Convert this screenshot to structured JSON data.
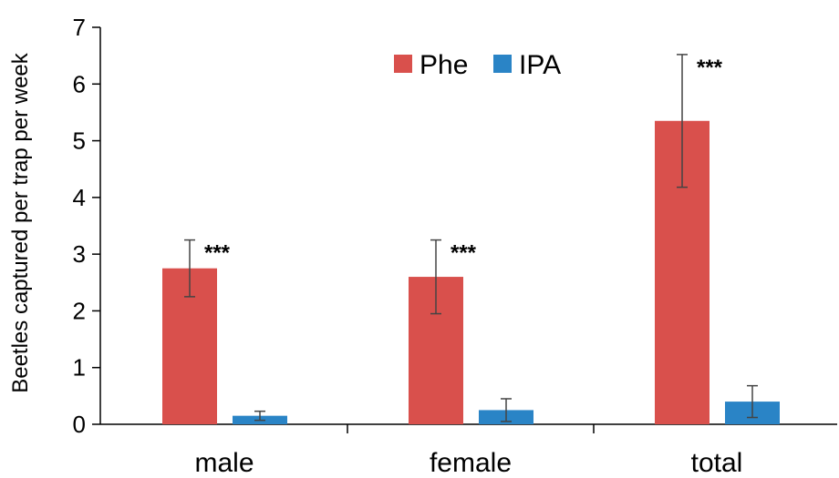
{
  "chart_data": {
    "type": "bar",
    "title": "",
    "xlabel": "",
    "ylabel": "Beetles captured per trap per week",
    "ylim": [
      0,
      7
    ],
    "yticks": [
      0,
      1,
      2,
      3,
      4,
      5,
      6,
      7
    ],
    "categories": [
      "male",
      "female",
      "total"
    ],
    "grid": false,
    "legend_position": "top-center",
    "series": [
      {
        "name": "Phe",
        "color": "#d9504c",
        "values": [
          2.75,
          2.6,
          5.35
        ],
        "errors": [
          0.5,
          0.65,
          1.17
        ],
        "significance": [
          "***",
          "***",
          "***"
        ]
      },
      {
        "name": "IPA",
        "color": "#2a84c6",
        "values": [
          0.15,
          0.25,
          0.4
        ],
        "errors": [
          0.08,
          0.2,
          0.28
        ],
        "significance": [
          "",
          "",
          ""
        ]
      }
    ]
  }
}
